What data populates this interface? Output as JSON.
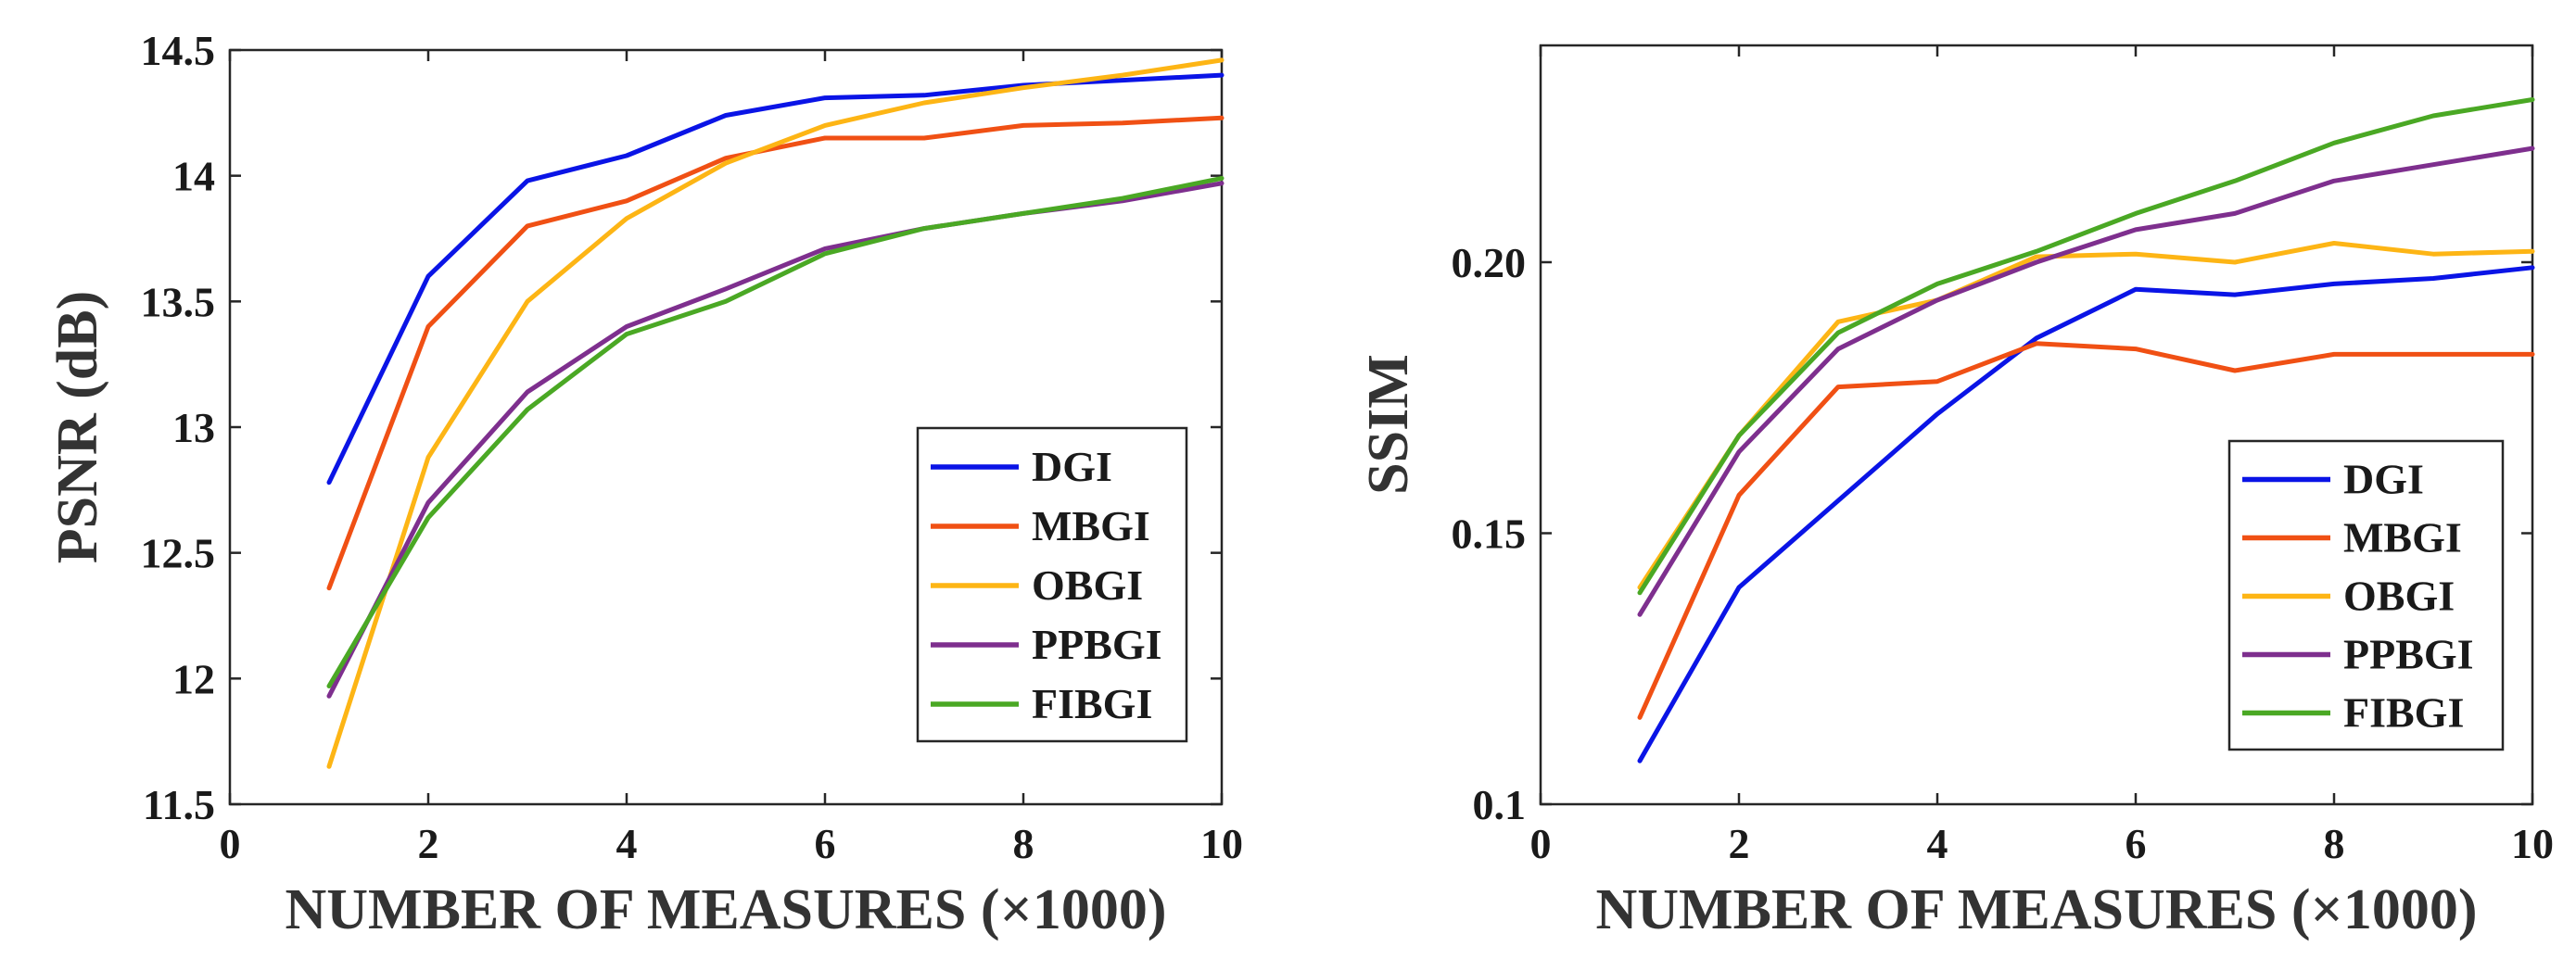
{
  "colors": {
    "DGI": "#0a14e6",
    "MBGI": "#f05014",
    "OBGI": "#fdb515",
    "PPBGI": "#7e2f8e",
    "FIBGI": "#4aa824"
  },
  "chart_data": [
    {
      "type": "line",
      "title": "",
      "xlabel": "NUMBER OF MEASURES (×1000)",
      "ylabel": "PSNR (dB)",
      "xlim": [
        0,
        10
      ],
      "ylim": [
        11.5,
        14.5
      ],
      "xticks": [
        0,
        2,
        4,
        6,
        8,
        10
      ],
      "yticks": [
        11.5,
        12,
        12.5,
        13,
        13.5,
        14,
        14.5
      ],
      "ytick_labels": [
        "11.5",
        "12",
        "12.5",
        "13",
        "13.5",
        "14",
        "14.5"
      ],
      "xtick_labels": [
        "0",
        "2",
        "4",
        "6",
        "8",
        "10"
      ],
      "legend_position": "right-middle",
      "x": [
        1,
        2,
        3,
        4,
        5,
        6,
        7,
        8,
        9,
        10
      ],
      "series": [
        {
          "name": "DGI",
          "values": [
            12.78,
            13.6,
            13.98,
            14.08,
            14.24,
            14.31,
            14.32,
            14.36,
            14.38,
            14.4
          ]
        },
        {
          "name": "MBGI",
          "values": [
            12.36,
            13.4,
            13.8,
            13.9,
            14.07,
            14.15,
            14.15,
            14.2,
            14.21,
            14.23
          ]
        },
        {
          "name": "OBGI",
          "values": [
            11.65,
            12.88,
            13.5,
            13.83,
            14.05,
            14.2,
            14.29,
            14.35,
            14.4,
            14.46
          ]
        },
        {
          "name": "PPBGI",
          "values": [
            11.93,
            12.7,
            13.14,
            13.4,
            13.55,
            13.71,
            13.79,
            13.85,
            13.9,
            13.97
          ]
        },
        {
          "name": "FIBGI",
          "values": [
            11.97,
            12.64,
            13.07,
            13.37,
            13.5,
            13.69,
            13.79,
            13.85,
            13.91,
            13.99
          ]
        }
      ]
    },
    {
      "type": "line",
      "title": "",
      "xlabel": "NUMBER OF MEASURES (×1000)",
      "ylabel": "SSIM",
      "xlim": [
        0,
        10
      ],
      "ylim": [
        0.1,
        0.24
      ],
      "xticks": [
        0,
        2,
        4,
        6,
        8,
        10
      ],
      "yticks": [
        0.1,
        0.15,
        0.2
      ],
      "ytick_labels": [
        "0.1",
        "0.15",
        "0.20"
      ],
      "xtick_labels": [
        "0",
        "2",
        "4",
        "6",
        "8",
        "10"
      ],
      "legend_position": "bottom-right",
      "x": [
        1,
        2,
        3,
        4,
        5,
        6,
        7,
        8,
        9,
        10
      ],
      "series": [
        {
          "name": "DGI",
          "values": [
            0.108,
            0.14,
            0.156,
            0.172,
            0.186,
            0.195,
            0.194,
            0.196,
            0.197,
            0.199
          ]
        },
        {
          "name": "MBGI",
          "values": [
            0.116,
            0.157,
            0.177,
            0.178,
            0.185,
            0.184,
            0.18,
            0.183,
            0.183,
            0.183
          ]
        },
        {
          "name": "OBGI",
          "values": [
            0.14,
            0.168,
            0.189,
            0.193,
            0.201,
            0.2015,
            0.2,
            0.2035,
            0.2015,
            0.202
          ]
        },
        {
          "name": "PPBGI",
          "values": [
            0.135,
            0.165,
            0.184,
            0.193,
            0.2,
            0.206,
            0.209,
            0.215,
            0.218,
            0.221
          ]
        },
        {
          "name": "FIBGI",
          "values": [
            0.139,
            0.168,
            0.187,
            0.196,
            0.202,
            0.209,
            0.215,
            0.222,
            0.227,
            0.23
          ]
        }
      ]
    }
  ]
}
